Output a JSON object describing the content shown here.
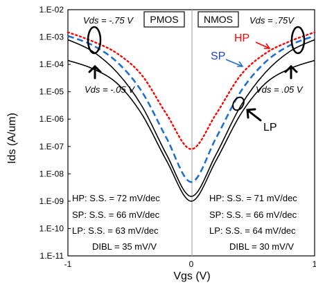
{
  "chart_data": {
    "type": "line",
    "xlabel": "Vgs (V)",
    "ylabel": "Ids (A/um)",
    "xlim": [
      -1,
      1
    ],
    "ylim": [
      1e-11,
      0.01
    ],
    "y_scale": "log",
    "x_ticks": [
      "-1",
      "0",
      "1"
    ],
    "y_ticks": [
      "1.E-11",
      "1.E-10",
      "1.E-09",
      "1.E-08",
      "1.E-07",
      "1.E-06",
      "1.E-05",
      "1.E-04",
      "1.E-03",
      "1.E-02"
    ],
    "grid": false,
    "series": [
      {
        "name": "HP",
        "color": "#ff0000",
        "style": "dotted",
        "x": [
          -1,
          -0.8,
          -0.6,
          -0.4,
          -0.2,
          0,
          0.2,
          0.4,
          0.6,
          0.8,
          1
        ],
        "y": [
          0.0015,
          0.0007,
          0.00025,
          4e-05,
          1.5e-06,
          8e-08,
          1.5e-06,
          4e-05,
          0.00025,
          0.0007,
          0.0015
        ]
      },
      {
        "name": "SP",
        "color": "#1f6fcf",
        "style": "dashed",
        "x": [
          -1,
          -0.8,
          -0.6,
          -0.4,
          -0.2,
          0,
          0.2,
          0.4,
          0.6,
          0.8,
          1
        ],
        "y": [
          0.0011,
          0.0005,
          0.00012,
          1e-05,
          2e-07,
          5e-09,
          2e-07,
          1e-05,
          0.00012,
          0.0005,
          0.0011
        ]
      },
      {
        "name": "LP",
        "color": "#000000",
        "style": "solid",
        "x": [
          -1,
          -0.8,
          -0.6,
          -0.4,
          -0.2,
          0,
          0.2,
          0.4,
          0.6,
          0.8,
          1
        ],
        "y": [
          0.0008,
          0.0003,
          5e-05,
          3e-06,
          5e-08,
          1.5e-09,
          5e-08,
          3e-06,
          5e-05,
          0.0003,
          0.0008
        ]
      },
      {
        "name": "LP",
        "color": "#000000",
        "style": "solid",
        "x": [
          -1,
          -0.8,
          -0.6,
          -0.4,
          -0.2,
          0,
          0.2,
          0.4,
          0.6,
          0.8,
          1
        ],
        "y": [
          0.00014,
          7e-05,
          2e-05,
          1.5e-06,
          3e-08,
          1e-09,
          3e-08,
          1.5e-06,
          2e-05,
          7e-05,
          0.00014
        ]
      }
    ],
    "annotations": {
      "pmos_label": "PMOS",
      "nmos_label": "NMOS",
      "vds_left_high": "Vds = -.75 V",
      "vds_right_high": "Vds = .75V",
      "vds_left_low": "Vds = -.05 V",
      "vds_right_low": "Vds = .05 V",
      "hp_tag": "HP",
      "sp_tag": "SP",
      "lp_tag": "LP",
      "pmos_ss": [
        "HP: S.S. = 72 mV/dec",
        "SP: S.S. =  66 mV/dec",
        "LP: S.S. =  63 mV/dec",
        "DIBL = 35 mV/V"
      ],
      "nmos_ss": [
        "HP: S.S. = 71 mV/dec",
        "SP: S.S. =  66 mV/dec",
        "LP: S.S. =  64 mV/dec",
        "DIBL = 30 mV/V"
      ]
    }
  }
}
